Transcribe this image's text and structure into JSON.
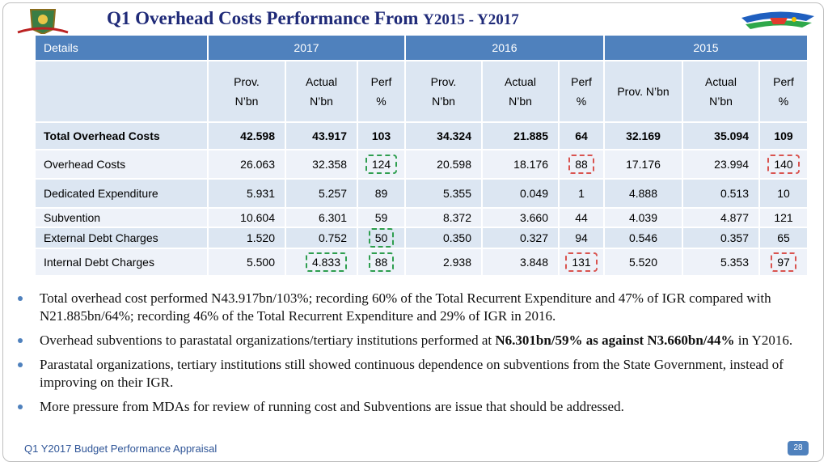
{
  "title": {
    "main": "Q1 Overhead Costs Performance From",
    "range": "Y2015 - Y2017"
  },
  "table": {
    "header": [
      "Details",
      "2017",
      "2016",
      "2015"
    ],
    "subheader": [
      [
        "Prov.",
        "N’bn"
      ],
      [
        "Actual",
        "N’bn"
      ],
      [
        "Perf",
        "%"
      ],
      [
        "Prov.",
        "N’bn"
      ],
      [
        "Actual",
        "N’bn"
      ],
      [
        "Perf",
        "%"
      ],
      [
        "Prov. N’bn"
      ],
      [
        "Actual",
        "N’bn"
      ],
      [
        "Perf",
        "%"
      ]
    ],
    "rows": [
      {
        "label": "Total Overhead Costs",
        "values": [
          "42.598",
          "43.917",
          "103",
          "34.324",
          "21.885",
          "64",
          "32.169",
          "35.094",
          "109"
        ]
      },
      {
        "label": "Overhead Costs",
        "values": [
          "26.063",
          "32.358",
          "124",
          "20.598",
          "18.176",
          "88",
          "17.176",
          "23.994",
          "140"
        ]
      },
      {
        "label": "Dedicated Expenditure",
        "values": [
          "5.931",
          "5.257",
          "89",
          "5.355",
          "0.049",
          "1",
          "4.888",
          "0.513",
          "10"
        ]
      },
      {
        "label": "Subvention",
        "values": [
          "10.604",
          "6.301",
          "59",
          "8.372",
          "3.660",
          "44",
          "4.039",
          "4.877",
          "121"
        ]
      },
      {
        "label": "External Debt Charges",
        "values": [
          "1.520",
          "0.752",
          "50",
          "0.350",
          "0.327",
          "94",
          "0.546",
          "0.357",
          "65"
        ]
      },
      {
        "label": "Internal Debt Charges",
        "values": [
          "5.500",
          "4.833",
          "88",
          "2.938",
          "3.848",
          "131",
          "5.520",
          "5.353",
          "97"
        ]
      }
    ]
  },
  "bullets": [
    [
      "Total overhead cost performed N43.917bn/103%; recording 60% of the Total Recurrent Expenditure and 47% of IGR compared with N21.885bn/64%; recording 46% of the Total Recurrent Expenditure and 29% of IGR in 2016."
    ],
    [
      "Overhead subventions to parastatal organizations/tertiary institutions performed at ",
      "N6.301bn/59% as against N3.660bn/44%",
      " in Y2016."
    ],
    [
      "Parastatal organizations, tertiary institutions still showed continuous dependence on subventions from the State Government, instead of improving on their IGR."
    ],
    [
      "More pressure from MDAs for review of running cost  and Subventions are issue that should be addressed."
    ]
  ],
  "footer": "Q1 Y2017 Budget Performance Appraisal",
  "page_number": "28"
}
